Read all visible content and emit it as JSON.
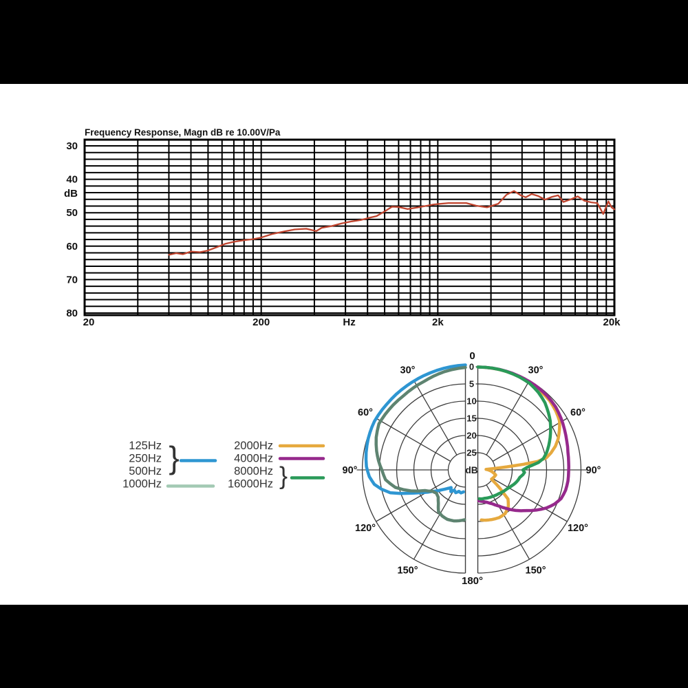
{
  "page": {
    "background": "#000000",
    "panel_background": "#ffffff"
  },
  "colors": {
    "fr_curve": "#c0442e",
    "grid_fr": "#000000",
    "grid_polar": "#3c3c3c",
    "text": "#111111",
    "legend_text": "#333333"
  },
  "chart_data": [
    {
      "type": "line",
      "title": "Frequency Response, Magn dB re 10.00V/Pa",
      "xlabel": "Hz",
      "ylabel": "dB",
      "x_scale": "log",
      "xlim": [
        20,
        20000
      ],
      "ylim": [
        30,
        80
      ],
      "y_axis_inverted": true,
      "grid": {
        "y_step_db": 2,
        "x_minor": "log multiples 2-9 per decade",
        "on": true
      },
      "y_ticks": [
        {
          "label": "30",
          "db": 30
        },
        {
          "label": "40",
          "db": 40
        },
        {
          "label": "dB",
          "db": 44.2,
          "is_unit": true
        },
        {
          "label": "50",
          "db": 50
        },
        {
          "label": "60",
          "db": 60
        },
        {
          "label": "70",
          "db": 70
        },
        {
          "label": "80",
          "db": 80
        }
      ],
      "x_ticks": [
        {
          "label": "20",
          "hz": 20
        },
        {
          "label": "200",
          "hz": 200
        },
        {
          "label": "Hz",
          "hz": 630,
          "is_unit": true
        },
        {
          "label": "2k",
          "hz": 2000
        },
        {
          "label": "20k",
          "hz": 20000
        }
      ],
      "series": [
        {
          "name": "on-axis frequency response",
          "color": "#c0442e",
          "points": [
            [
              60,
              62.6
            ],
            [
              66,
              62.1
            ],
            [
              72,
              62.4
            ],
            [
              80,
              61.6
            ],
            [
              90,
              61.8
            ],
            [
              100,
              61.3
            ],
            [
              112,
              60.3
            ],
            [
              125,
              59.3
            ],
            [
              140,
              58.7
            ],
            [
              160,
              58.2
            ],
            [
              180,
              57.9
            ],
            [
              200,
              57.4
            ],
            [
              230,
              56.4
            ],
            [
              270,
              55.6
            ],
            [
              310,
              55.0
            ],
            [
              360,
              54.8
            ],
            [
              410,
              55.5
            ],
            [
              440,
              54.5
            ],
            [
              500,
              54.0
            ],
            [
              570,
              53.2
            ],
            [
              650,
              52.6
            ],
            [
              730,
              52.2
            ],
            [
              820,
              51.5
            ],
            [
              900,
              51.0
            ],
            [
              1000,
              49.6
            ],
            [
              1100,
              48.2
            ],
            [
              1200,
              48.3
            ],
            [
              1350,
              48.9
            ],
            [
              1550,
              48.4
            ],
            [
              1900,
              47.5
            ],
            [
              2300,
              47.1
            ],
            [
              2900,
              47.1
            ],
            [
              3300,
              47.9
            ],
            [
              3800,
              48.4
            ],
            [
              4400,
              47.3
            ],
            [
              4900,
              44.6
            ],
            [
              5400,
              43.5
            ],
            [
              5900,
              44.8
            ],
            [
              6300,
              45.4
            ],
            [
              6800,
              44.4
            ],
            [
              7400,
              45.0
            ],
            [
              8100,
              46.1
            ],
            [
              8800,
              45.3
            ],
            [
              9600,
              44.8
            ],
            [
              10300,
              46.8
            ],
            [
              11300,
              46.0
            ],
            [
              12400,
              45.1
            ],
            [
              13500,
              46.4
            ],
            [
              14800,
              46.9
            ],
            [
              16000,
              47.1
            ],
            [
              17300,
              50.4
            ],
            [
              18500,
              46.6
            ],
            [
              19300,
              48.4
            ],
            [
              20000,
              49.0
            ]
          ]
        }
      ]
    },
    {
      "type": "polar",
      "center_label": "dB",
      "rings_db": [
        0,
        5,
        10,
        15,
        20,
        25
      ],
      "angle_labels": [
        {
          "deg": 0,
          "label": "0",
          "sides": [
            "top"
          ]
        },
        {
          "deg": 30,
          "label": "30°",
          "sides": [
            "left",
            "right"
          ]
        },
        {
          "deg": 60,
          "label": "60°",
          "sides": [
            "left",
            "right"
          ]
        },
        {
          "deg": 90,
          "label": "90°",
          "sides": [
            "left",
            "right"
          ]
        },
        {
          "deg": 120,
          "label": "120°",
          "sides": [
            "left",
            "right"
          ]
        },
        {
          "deg": 150,
          "label": "150°",
          "sides": [
            "left",
            "right"
          ]
        },
        {
          "deg": 180,
          "label": "180°",
          "sides": [
            "bottom"
          ]
        }
      ],
      "series": [
        {
          "name": "125/250/500 Hz",
          "legend_labels": [
            "125Hz",
            "250Hz",
            "500Hz"
          ],
          "side": "left",
          "color": "#2e96d2",
          "points": [
            [
              0,
              -0.5
            ],
            [
              8,
              -0.3
            ],
            [
              20,
              0
            ],
            [
              35,
              0.2
            ],
            [
              50,
              0.2
            ],
            [
              62,
              0
            ],
            [
              72,
              0.3
            ],
            [
              80,
              0.7
            ],
            [
              88,
              1.2
            ],
            [
              94,
              2.0
            ],
            [
              99,
              3.2
            ],
            [
              103,
              5.0
            ],
            [
              107,
              7.2
            ],
            [
              110,
              10.0
            ],
            [
              114,
              13.4
            ],
            [
              118,
              16.0
            ],
            [
              123,
              18.5
            ],
            [
              130,
              21.0
            ],
            [
              136,
              22.5
            ],
            [
              141,
              23.4
            ],
            [
              146,
              22.4
            ],
            [
              151,
              23.3
            ],
            [
              157,
              22.8
            ],
            [
              163,
              23.5
            ],
            [
              169,
              23.2
            ],
            [
              175,
              23.6
            ]
          ]
        },
        {
          "name": "1000 Hz",
          "legend_labels": [
            "1000Hz"
          ],
          "side": "left",
          "color": "#5e8471",
          "legend_color": "#a2c9b3",
          "points": [
            [
              0,
              0.2
            ],
            [
              12,
              0.8
            ],
            [
              25,
              1.6
            ],
            [
              40,
              1.9
            ],
            [
              52,
              1.7
            ],
            [
              62,
              1.5
            ],
            [
              70,
              2.4
            ],
            [
              78,
              3.6
            ],
            [
              84,
              4.6
            ],
            [
              90,
              5.7
            ],
            [
              97,
              6.6
            ],
            [
              104,
              9.0
            ],
            [
              111,
              13.0
            ],
            [
              117,
              16.8
            ],
            [
              123,
              18.6
            ],
            [
              129,
              19.2
            ],
            [
              135,
              18.8
            ],
            [
              141,
              17.5
            ],
            [
              147,
              15.6
            ],
            [
              153,
              15.0
            ],
            [
              160,
              14.7
            ],
            [
              167,
              14.8
            ],
            [
              173,
              15.1
            ],
            [
              179,
              15.5
            ]
          ]
        },
        {
          "name": "2000 Hz",
          "legend_labels": [
            "2000Hz"
          ],
          "side": "right",
          "color": "#e6a93e",
          "points": [
            [
              0,
              0.1
            ],
            [
              15,
              0.2
            ],
            [
              28,
              0.4
            ],
            [
              38,
              0.7
            ],
            [
              46,
              1.0
            ],
            [
              53,
              1.6
            ],
            [
              59,
              2.3
            ],
            [
              64,
              3.6
            ],
            [
              69,
              5.0
            ],
            [
              73,
              6.4
            ],
            [
              77,
              8.2
            ],
            [
              80,
              9.8
            ],
            [
              82,
              12.5
            ],
            [
              83,
              16.6
            ],
            [
              84,
              21.4
            ],
            [
              85,
              25.0
            ],
            [
              86,
              27.6
            ],
            [
              96,
              26.0
            ],
            [
              106,
              24.6
            ],
            [
              124,
              25.2
            ],
            [
              128,
              23.0
            ],
            [
              130,
              21.5
            ],
            [
              134,
              17.8
            ],
            [
              140,
              16.2
            ],
            [
              148,
              15.0
            ],
            [
              156,
              14.8
            ],
            [
              164,
              15.0
            ],
            [
              171,
              15.2
            ],
            [
              176,
              15.4
            ]
          ]
        },
        {
          "name": "4000 Hz",
          "legend_labels": [
            "4000Hz"
          ],
          "side": "right",
          "color": "#96298c",
          "points": [
            [
              0,
              0.1
            ],
            [
              12,
              0.1
            ],
            [
              24,
              0.2
            ],
            [
              34,
              0.3
            ],
            [
              43,
              0.5
            ],
            [
              51,
              0.9
            ],
            [
              58,
              1.5
            ],
            [
              65,
              2.2
            ],
            [
              72,
              2.8
            ],
            [
              79,
              3.3
            ],
            [
              85,
              3.5
            ],
            [
              91,
              3.6
            ],
            [
              97,
              3.6
            ],
            [
              103,
              3.8
            ],
            [
              109,
              4.4
            ],
            [
              114,
              5.6
            ],
            [
              119,
              7.2
            ],
            [
              124,
              9.2
            ],
            [
              130,
              11.6
            ],
            [
              137,
              13.9
            ],
            [
              144,
              16.2
            ],
            [
              150,
              17.9
            ],
            [
              157,
              19.3
            ],
            [
              164,
              20.2
            ],
            [
              171,
              20.7
            ],
            [
              178,
              21.0
            ]
          ]
        },
        {
          "name": "8000/16000 Hz",
          "legend_labels": [
            "8000Hz",
            "16000Hz"
          ],
          "side": "right",
          "color": "#2a9a59",
          "points": [
            [
              0,
              0.1
            ],
            [
              8,
              0.1
            ],
            [
              16,
              0.2
            ],
            [
              24,
              0.4
            ],
            [
              31,
              0.7
            ],
            [
              38,
              1.4
            ],
            [
              45,
              2.4
            ],
            [
              51,
              3.6
            ],
            [
              56,
              4.6
            ],
            [
              61,
              5.8
            ],
            [
              66,
              7.0
            ],
            [
              71,
              8.2
            ],
            [
              76,
              9.4
            ],
            [
              80,
              10.6
            ],
            [
              83,
              12.2
            ],
            [
              85,
              14.0
            ],
            [
              87,
              15.6
            ],
            [
              90,
              16.9
            ],
            [
              93,
              16.4
            ],
            [
              96,
              16.8
            ],
            [
              100,
              17.6
            ],
            [
              104,
              17.9
            ],
            [
              109,
              18.4
            ],
            [
              115,
              19.1
            ],
            [
              122,
              19.8
            ],
            [
              130,
              20.3
            ],
            [
              139,
              20.8
            ],
            [
              148,
              21.1
            ],
            [
              157,
              21.3
            ],
            [
              166,
              21.5
            ],
            [
              172,
              21.5
            ],
            [
              177,
              21.6
            ]
          ]
        }
      ],
      "legend": {
        "entries": [
          {
            "labels": [
              "125Hz",
              "250Hz",
              "500Hz"
            ],
            "brace": true,
            "swatch_color": "#2e96d2"
          },
          {
            "labels": [
              "1000Hz"
            ],
            "brace": false,
            "swatch_color": "#a2c9b3"
          },
          {
            "labels": [
              "2000Hz"
            ],
            "brace": false,
            "swatch_color": "#e6a93e"
          },
          {
            "labels": [
              "4000Hz"
            ],
            "brace": false,
            "swatch_color": "#96298c"
          },
          {
            "labels": [
              "8000Hz",
              "16000Hz"
            ],
            "brace": true,
            "swatch_color": "#2a9a59"
          }
        ]
      }
    }
  ]
}
